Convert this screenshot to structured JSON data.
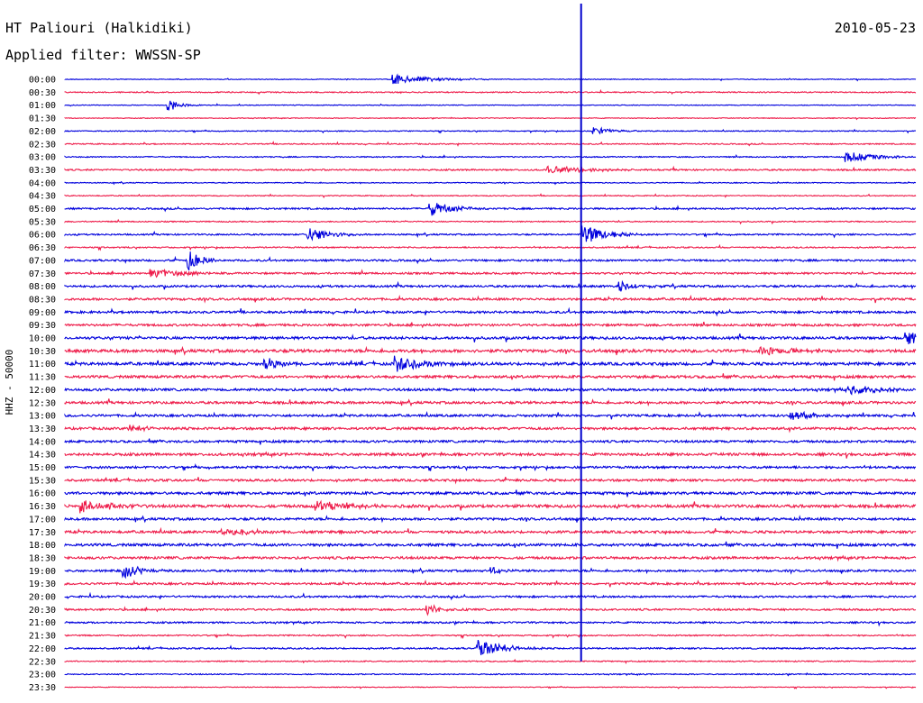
{
  "header": {
    "station": "HT Paliouri (Halkidiki)",
    "date": "2010-05-23",
    "filter": "Applied filter: WWSSN-SP"
  },
  "colors": {
    "trace_even": "#0000dd",
    "trace_odd": "#ee1c4a",
    "marker": "#0000cc"
  },
  "chart_data": {
    "type": "line",
    "title": "HT Paliouri (Halkidiki)",
    "subtitle": "Applied filter: WWSSN-SP",
    "ylabel": "HHZ - 50000",
    "xlabel": "",
    "row_labels": [
      "00:00",
      "00:30",
      "01:00",
      "01:30",
      "02:00",
      "02:30",
      "03:00",
      "03:30",
      "04:00",
      "04:30",
      "05:00",
      "05:30",
      "06:00",
      "06:30",
      "07:00",
      "07:30",
      "08:00",
      "08:30",
      "09:00",
      "09:30",
      "10:00",
      "10:30",
      "11:00",
      "11:30",
      "12:00",
      "12:30",
      "13:00",
      "13:30",
      "14:00",
      "14:30",
      "15:00",
      "15:30",
      "16:00",
      "16:30",
      "17:00",
      "17:30",
      "18:00",
      "18:30",
      "19:00",
      "19:30",
      "20:00",
      "20:30",
      "21:00",
      "21:30",
      "22:00",
      "22:30",
      "23:00",
      "23:30"
    ],
    "row_noise": [
      0.4,
      0.6,
      0.4,
      0.4,
      0.5,
      0.6,
      0.6,
      0.8,
      0.5,
      0.5,
      0.9,
      0.6,
      0.8,
      0.7,
      1.0,
      1.0,
      1.1,
      1.2,
      1.2,
      1.2,
      1.4,
      1.6,
      1.5,
      1.4,
      1.3,
      1.3,
      1.2,
      1.3,
      1.2,
      1.4,
      1.2,
      1.2,
      1.4,
      1.5,
      1.3,
      1.3,
      1.4,
      1.3,
      1.1,
      1.1,
      1.0,
      1.0,
      0.9,
      0.7,
      0.8,
      0.6,
      0.6,
      0.4
    ],
    "marker_minute": 18.2,
    "events": [
      {
        "row": 0,
        "minute": 11.5,
        "amp": 6,
        "dur": 1.2
      },
      {
        "row": 2,
        "minute": 3.6,
        "amp": 7,
        "dur": 0.4
      },
      {
        "row": 4,
        "minute": 18.6,
        "amp": 5,
        "dur": 0.6
      },
      {
        "row": 6,
        "minute": 27.5,
        "amp": 6,
        "dur": 1.0
      },
      {
        "row": 7,
        "minute": 17.0,
        "amp": 4,
        "dur": 1.5
      },
      {
        "row": 10,
        "minute": 12.8,
        "amp": 9,
        "dur": 0.8
      },
      {
        "row": 12,
        "minute": 8.5,
        "amp": 10,
        "dur": 0.7
      },
      {
        "row": 12,
        "minute": 18.2,
        "amp": 12,
        "dur": 0.8
      },
      {
        "row": 14,
        "minute": 4.3,
        "amp": 14,
        "dur": 0.4
      },
      {
        "row": 15,
        "minute": 3.0,
        "amp": 6,
        "dur": 1.0
      },
      {
        "row": 16,
        "minute": 19.5,
        "amp": 6,
        "dur": 0.6
      },
      {
        "row": 20,
        "minute": 29.6,
        "amp": 8,
        "dur": 1.2
      },
      {
        "row": 21,
        "minute": 24.5,
        "amp": 6,
        "dur": 1.0
      },
      {
        "row": 22,
        "minute": 7.0,
        "amp": 8,
        "dur": 0.6
      },
      {
        "row": 22,
        "minute": 11.6,
        "amp": 10,
        "dur": 0.9
      },
      {
        "row": 24,
        "minute": 27.6,
        "amp": 6,
        "dur": 1.0
      },
      {
        "row": 26,
        "minute": 25.5,
        "amp": 6,
        "dur": 0.7
      },
      {
        "row": 27,
        "minute": 2.2,
        "amp": 4,
        "dur": 0.6
      },
      {
        "row": 33,
        "minute": 0.5,
        "amp": 8,
        "dur": 0.9
      },
      {
        "row": 33,
        "minute": 8.8,
        "amp": 6,
        "dur": 1.3
      },
      {
        "row": 35,
        "minute": 5.5,
        "amp": 4,
        "dur": 1.5
      },
      {
        "row": 38,
        "minute": 2.0,
        "amp": 9,
        "dur": 0.6
      },
      {
        "row": 38,
        "minute": 15.0,
        "amp": 5,
        "dur": 0.3
      },
      {
        "row": 41,
        "minute": 12.7,
        "amp": 6,
        "dur": 0.5
      },
      {
        "row": 44,
        "minute": 14.5,
        "amp": 12,
        "dur": 0.8
      }
    ]
  }
}
